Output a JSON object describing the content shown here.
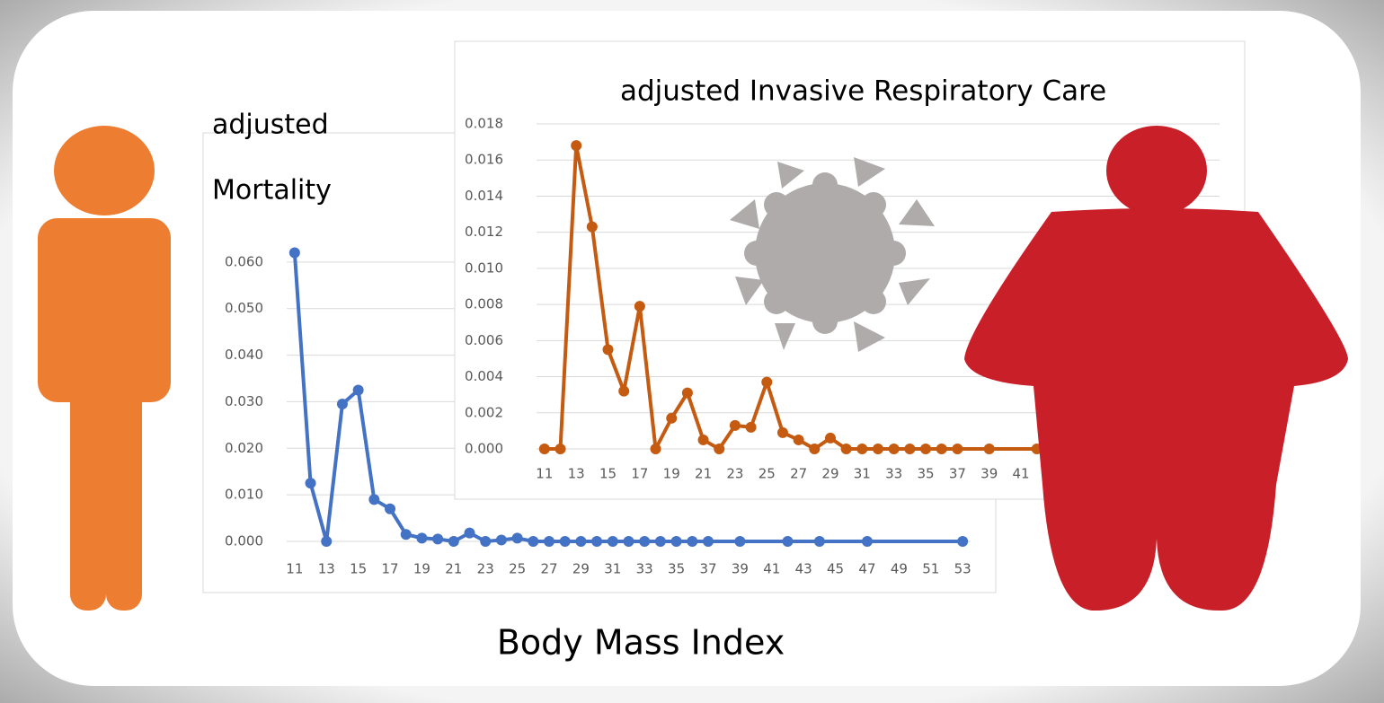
{
  "chart_data": [
    {
      "type": "line",
      "title": [
        "adjusted",
        "Mortality"
      ],
      "xlabel": "Body Mass Index",
      "color": "#4472c4",
      "grid": true,
      "x": [
        11,
        12,
        13,
        14,
        15,
        16,
        17,
        18,
        19,
        20,
        21,
        22,
        23,
        24,
        25,
        26,
        27,
        28,
        29,
        30,
        31,
        32,
        33,
        34,
        35,
        36,
        37,
        39,
        42,
        44,
        47,
        53
      ],
      "values": [
        0.062,
        0.0125,
        0,
        0.0295,
        0.0325,
        0.009,
        0.007,
        0.0015,
        0.0007,
        0.0005,
        0,
        0.0018,
        0,
        0.0003,
        0.0007,
        0,
        0,
        0,
        0,
        0,
        0,
        0,
        0,
        0,
        0,
        0,
        0,
        0,
        0,
        0,
        0,
        0
      ],
      "xlim": [
        10.5,
        53.5
      ],
      "ylim": [
        0,
        0.07
      ],
      "xticks": [
        11,
        13,
        15,
        17,
        19,
        21,
        23,
        25,
        27,
        29,
        31,
        33,
        35,
        37,
        39,
        41,
        43,
        45,
        47,
        49,
        51,
        53
      ],
      "yticks": [
        {
          "value": 0,
          "label": "0.000"
        },
        {
          "value": 0.01,
          "label": "0.010"
        },
        {
          "value": 0.02,
          "label": "0.020"
        },
        {
          "value": 0.03,
          "label": "0.030"
        },
        {
          "value": 0.04,
          "label": "0.040"
        },
        {
          "value": 0.05,
          "label": "0.050"
        },
        {
          "value": 0.06,
          "label": "0.060"
        }
      ]
    },
    {
      "type": "line",
      "title": [
        "adjusted Invasive Respiratory Care"
      ],
      "color": "#c55a11",
      "grid": true,
      "x": [
        11,
        12,
        13,
        14,
        15,
        16,
        17,
        18,
        19,
        20,
        21,
        22,
        23,
        24,
        25,
        26,
        27,
        28,
        29,
        30,
        31,
        32,
        33,
        34,
        35,
        36,
        37,
        39,
        42
      ],
      "values": [
        0,
        0,
        0.0168,
        0.0123,
        0.0055,
        0.0032,
        0.0079,
        0,
        0.0017,
        0.0031,
        0.0005,
        0,
        0.0013,
        0.0012,
        0.0037,
        0.0009,
        0.0005,
        0,
        0.0006,
        0,
        0,
        0,
        0,
        0,
        0,
        0,
        0,
        0,
        0
      ],
      "xlim": [
        10.5,
        53.5
      ],
      "ylim": [
        0,
        0.018
      ],
      "xticks": [
        11,
        13,
        15,
        17,
        19,
        21,
        23,
        25,
        27,
        29,
        31,
        33,
        35,
        37,
        39,
        41
      ],
      "yticks": [
        {
          "value": 0,
          "label": "0.000"
        },
        {
          "value": 0.002,
          "label": "0.002"
        },
        {
          "value": 0.004,
          "label": "0.004"
        },
        {
          "value": 0.006,
          "label": "0.006"
        },
        {
          "value": 0.008,
          "label": "0.008"
        },
        {
          "value": 0.01,
          "label": "0.010"
        },
        {
          "value": 0.012,
          "label": "0.012"
        },
        {
          "value": 0.014,
          "label": "0.014"
        },
        {
          "value": 0.016,
          "label": "0.016"
        },
        {
          "value": 0.018,
          "label": "0.018"
        }
      ]
    }
  ]
}
